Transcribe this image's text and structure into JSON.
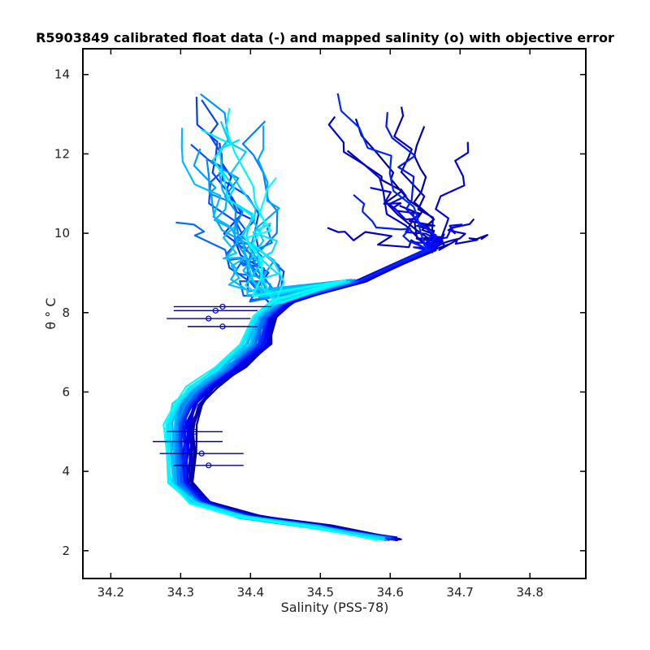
{
  "chart_data": {
    "type": "line",
    "title": "R5903849 calibrated float data (-) and mapped salinity (o) with objective error",
    "xlabel": "Salinity (PSS-78)",
    "ylabel": "θ ° C",
    "xlim": [
      34.16,
      34.88
    ],
    "ylim": [
      1.3,
      14.65
    ],
    "xticks": [
      34.2,
      34.3,
      34.4,
      34.5,
      34.6,
      34.7,
      34.8
    ],
    "xtick_labels": [
      "34.2",
      "34.3",
      "34.4",
      "34.5",
      "34.6",
      "34.7",
      "34.8"
    ],
    "yticks": [
      2,
      4,
      6,
      8,
      10,
      12,
      14
    ],
    "ytick_labels": [
      "2",
      "4",
      "6",
      "8",
      "10",
      "12",
      "14"
    ],
    "grid": false,
    "colormap": [
      "#00008b",
      "#0000ff",
      "#0080ff",
      "#00ffff"
    ],
    "profile_count": 40,
    "deep_profile": [
      [
        34.6,
        2.3
      ],
      [
        34.5,
        2.6
      ],
      [
        34.4,
        2.85
      ],
      [
        34.33,
        3.2
      ],
      [
        34.3,
        3.7
      ],
      [
        34.3,
        4.5
      ],
      [
        34.3,
        5.2
      ],
      [
        34.31,
        5.7
      ],
      [
        34.33,
        6.1
      ],
      [
        34.37,
        6.6
      ],
      [
        34.41,
        7.2
      ],
      [
        34.42,
        7.9
      ],
      [
        34.45,
        8.3
      ],
      [
        34.55,
        8.8
      ],
      [
        34.65,
        9.6
      ]
    ],
    "error_bars": [
      {
        "x": 34.36,
        "y": 8.15,
        "err": 0.07
      },
      {
        "x": 34.35,
        "y": 8.05,
        "err": 0.06
      },
      {
        "x": 34.34,
        "y": 7.85,
        "err": 0.06
      },
      {
        "x": 34.36,
        "y": 7.65,
        "err": 0.05
      },
      {
        "x": 34.32,
        "y": 5.0,
        "err": 0.04
      },
      {
        "x": 34.31,
        "y": 4.75,
        "err": 0.05
      },
      {
        "x": 34.33,
        "y": 4.45,
        "err": 0.06
      },
      {
        "x": 34.34,
        "y": 4.15,
        "err": 0.05
      }
    ]
  }
}
